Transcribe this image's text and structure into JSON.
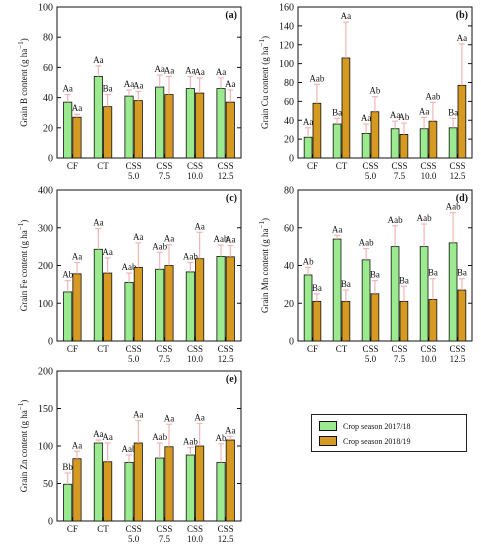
{
  "colors": {
    "season1": "#9bea8f",
    "season2": "#d69a22",
    "error_bar": "#f0b6b6",
    "axis": "#111111"
  },
  "legend": {
    "items": [
      {
        "label": "Crop season 2017/18",
        "color": "#9bea8f"
      },
      {
        "label": "Crop season 2018/19",
        "color": "#d69a22"
      }
    ]
  },
  "chart_data": [
    {
      "type": "bar",
      "panel": "(a)",
      "ylabel": "Grain B content (g ha",
      "ylabel_sup": "−1",
      "ylim": [
        0,
        100
      ],
      "yticks": [
        0,
        20,
        40,
        60,
        80,
        100
      ],
      "categories": [
        "CF",
        "CT",
        "CSS 5.0",
        "CSS 7.5",
        "CSS 10.0",
        "CSS 12.5"
      ],
      "category_lines": [
        [
          "CF"
        ],
        [
          "CT"
        ],
        [
          "CSS",
          "5.0"
        ],
        [
          "CSS",
          "7.5"
        ],
        [
          "CSS",
          "10.0"
        ],
        [
          "CSS",
          "12.5"
        ]
      ],
      "series": [
        {
          "values": [
            37,
            54,
            41,
            47,
            46,
            46
          ],
          "errors": [
            5,
            7,
            4,
            8,
            8,
            7
          ],
          "labels": [
            "Aa",
            "Aa",
            "Aa",
            "Aa",
            "Aa",
            "Aa"
          ]
        },
        {
          "values": [
            27,
            34,
            38,
            42,
            43,
            37
          ],
          "errors": [
            2,
            8,
            6,
            12,
            10,
            8
          ],
          "labels": [
            "Aa",
            "Ba",
            "Aa",
            "Aa",
            "Aa",
            "Aa"
          ]
        }
      ]
    },
    {
      "type": "bar",
      "panel": "(b)",
      "ylabel": "Grain Cu content (g ha",
      "ylabel_sup": "−1",
      "ylim": [
        0,
        160
      ],
      "yticks": [
        0,
        20,
        40,
        60,
        80,
        100,
        120,
        140,
        160
      ],
      "categories": [
        "CF",
        "CT",
        "CSS 5.0",
        "CSS 7.5",
        "CSS 10.0",
        "CSS 12.5"
      ],
      "category_lines": [
        [
          "CF"
        ],
        [
          "CT"
        ],
        [
          "CSS",
          "5.0"
        ],
        [
          "CSS",
          "7.5"
        ],
        [
          "CSS",
          "10.0"
        ],
        [
          "CSS",
          "12.5"
        ]
      ],
      "series": [
        {
          "values": [
            22,
            36,
            26,
            31,
            31,
            32
          ],
          "errors": [
            10,
            6,
            10,
            8,
            12,
            10
          ],
          "labels": [
            "Aa",
            "Ba",
            "Aa",
            "Aa",
            "Aa",
            "Ba"
          ]
        },
        {
          "values": [
            58,
            106,
            49,
            25,
            39,
            77
          ],
          "errors": [
            20,
            38,
            16,
            12,
            20,
            44
          ],
          "labels": [
            "Aab",
            "Aa",
            "Ab",
            "Ab",
            "Aab",
            "Aa"
          ]
        }
      ]
    },
    {
      "type": "bar",
      "panel": "(c)",
      "ylabel": "Grain Fe content (g ha",
      "ylabel_sup": "−1",
      "ylim": [
        0,
        400
      ],
      "yticks": [
        0,
        100,
        200,
        300,
        400
      ],
      "categories": [
        "CF",
        "CT",
        "CSS 5.0",
        "CSS 7.5",
        "CSS 10.0",
        "CSS 12.5"
      ],
      "category_lines": [
        [
          "CF"
        ],
        [
          "CT"
        ],
        [
          "CSS",
          "5.0"
        ],
        [
          "CSS",
          "7.5"
        ],
        [
          "CSS",
          "10.0"
        ],
        [
          "CSS",
          "12.5"
        ]
      ],
      "series": [
        {
          "values": [
            130,
            243,
            155,
            190,
            183,
            224
          ],
          "errors": [
            30,
            55,
            25,
            45,
            25,
            30
          ],
          "labels": [
            "Ab",
            "Aa",
            "Aab",
            "Aab",
            "Aab",
            "Aab"
          ]
        },
        {
          "values": [
            178,
            180,
            195,
            200,
            218,
            223
          ],
          "errors": [
            30,
            40,
            65,
            55,
            70,
            30
          ],
          "labels": [
            "Aa",
            "Aa",
            "Aa",
            "Aa",
            "Aa",
            "Aa"
          ]
        }
      ]
    },
    {
      "type": "bar",
      "panel": "(d)",
      "ylabel": "Grain Mn content (g ha",
      "ylabel_sup": "−1",
      "ylim": [
        0,
        80
      ],
      "yticks": [
        0,
        20,
        40,
        60,
        80
      ],
      "categories": [
        "CF",
        "CT",
        "CSS 5.0",
        "CSS 7.5",
        "CSS 10.0",
        "CSS 12.5"
      ],
      "category_lines": [
        [
          "CF"
        ],
        [
          "CT"
        ],
        [
          "CSS",
          "5.0"
        ],
        [
          "CSS",
          "7.5"
        ],
        [
          "CSS",
          "10.0"
        ],
        [
          "CSS",
          "12.5"
        ]
      ],
      "series": [
        {
          "values": [
            35,
            54,
            43,
            50,
            50,
            52
          ],
          "errors": [
            4,
            2,
            6,
            11,
            12,
            16
          ],
          "labels": [
            "Ab",
            "Aa",
            "Aab",
            "Aab",
            "Aab",
            "Aab"
          ]
        },
        {
          "values": [
            21,
            21,
            25,
            21,
            22,
            27
          ],
          "errors": [
            4,
            6,
            7,
            8,
            11,
            6
          ],
          "labels": [
            "Ba",
            "Ba",
            "Ba",
            "Ba",
            "Ba",
            "Ba"
          ]
        }
      ]
    },
    {
      "type": "bar",
      "panel": "(e)",
      "ylabel": "Grain Zn content (g ha",
      "ylabel_sup": "−1",
      "ylim": [
        0,
        200
      ],
      "yticks": [
        0,
        50,
        100,
        150,
        200
      ],
      "categories": [
        "CF",
        "CT",
        "CSS 5.0",
        "CSS 7.5",
        "CSS 10.0",
        "CSS 12.5"
      ],
      "category_lines": [
        [
          "CF"
        ],
        [
          "CT"
        ],
        [
          "CSS",
          "5.0"
        ],
        [
          "CSS",
          "7.5"
        ],
        [
          "CSS",
          "10.0"
        ],
        [
          "CSS",
          "12.5"
        ]
      ],
      "series": [
        {
          "values": [
            49,
            104,
            78,
            84,
            88,
            78
          ],
          "errors": [
            15,
            4,
            10,
            20,
            10,
            25
          ],
          "labels": [
            "Bb",
            "Aa",
            "Aab",
            "Aab",
            "Aab",
            "Ab"
          ]
        },
        {
          "values": [
            83,
            79,
            104,
            99,
            100,
            108
          ],
          "errors": [
            10,
            25,
            30,
            30,
            30,
            5
          ],
          "labels": [
            "Aa",
            "Aa",
            "Aa",
            "Aa",
            "Aa",
            "Aa"
          ]
        }
      ]
    }
  ]
}
